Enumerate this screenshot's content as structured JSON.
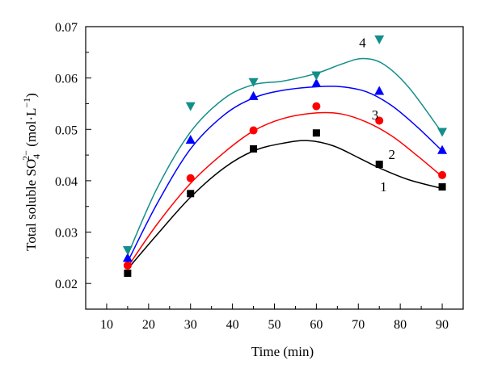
{
  "chart_data": {
    "type": "scatter",
    "title": "",
    "xlabel": "Time (min)",
    "ylabel": {
      "prefix": "Total soluble SO",
      "subscript": "4",
      "superscript": "2−",
      "suffix": " (mol·L",
      "unit_superscript": "−1",
      "close": ")"
    },
    "xlim": [
      5,
      95
    ],
    "ylim": [
      0.015,
      0.07
    ],
    "x_ticks": [
      10,
      20,
      30,
      40,
      50,
      60,
      70,
      80,
      90
    ],
    "y_ticks": [
      0.02,
      0.03,
      0.04,
      0.05,
      0.06,
      0.07
    ],
    "y_tick_labels": [
      "0.02",
      "0.03",
      "0.04",
      "0.05",
      "0.06",
      "0.07"
    ],
    "x": [
      15,
      30,
      45,
      60,
      75,
      90
    ],
    "grid": false,
    "series": [
      {
        "name": "1",
        "color": "#000000",
        "marker": "square",
        "values": [
          0.022,
          0.0375,
          0.0462,
          0.0493,
          0.0432,
          0.0388
        ],
        "fit": [
          [
            15,
            0.0228
          ],
          [
            22,
            0.0295
          ],
          [
            30,
            0.0368
          ],
          [
            38,
            0.0425
          ],
          [
            45,
            0.0458
          ],
          [
            52,
            0.0473
          ],
          [
            58,
            0.0478
          ],
          [
            64,
            0.0468
          ],
          [
            70,
            0.0445
          ],
          [
            75,
            0.0425
          ],
          [
            82,
            0.0402
          ],
          [
            90,
            0.0385
          ]
        ]
      },
      {
        "name": "2",
        "color": "#ff0000",
        "marker": "circle",
        "values": [
          0.0235,
          0.0405,
          0.0498,
          0.0545,
          0.0517,
          0.0411
        ],
        "fit": [
          [
            15,
            0.0232
          ],
          [
            22,
            0.0315
          ],
          [
            30,
            0.0395
          ],
          [
            38,
            0.0455
          ],
          [
            45,
            0.0497
          ],
          [
            52,
            0.0521
          ],
          [
            60,
            0.0532
          ],
          [
            66,
            0.053
          ],
          [
            72,
            0.0514
          ],
          [
            78,
            0.0487
          ],
          [
            84,
            0.0449
          ],
          [
            90,
            0.0408
          ]
        ]
      },
      {
        "name": "3",
        "color": "#0000ff",
        "marker": "triangle-up",
        "values": [
          0.025,
          0.048,
          0.0565,
          0.059,
          0.0575,
          0.046
        ],
        "fit": [
          [
            15,
            0.0242
          ],
          [
            22,
            0.0355
          ],
          [
            30,
            0.0462
          ],
          [
            38,
            0.0528
          ],
          [
            45,
            0.0561
          ],
          [
            52,
            0.0576
          ],
          [
            60,
            0.0583
          ],
          [
            66,
            0.0583
          ],
          [
            72,
            0.0573
          ],
          [
            78,
            0.0546
          ],
          [
            84,
            0.0505
          ],
          [
            90,
            0.0458
          ]
        ]
      },
      {
        "name": "4",
        "color": "#138f8a",
        "marker": "triangle-down",
        "values": [
          0.0265,
          0.0545,
          0.0592,
          0.0605,
          0.0675,
          0.0495
        ],
        "fit": [
          [
            15,
            0.0255
          ],
          [
            22,
            0.0385
          ],
          [
            30,
            0.0495
          ],
          [
            38,
            0.056
          ],
          [
            45,
            0.0587
          ],
          [
            52,
            0.0594
          ],
          [
            60,
            0.0609
          ],
          [
            66,
            0.0627
          ],
          [
            71,
            0.0638
          ],
          [
            76,
            0.0627
          ],
          [
            82,
            0.0582
          ],
          [
            90,
            0.0493
          ]
        ]
      }
    ]
  }
}
